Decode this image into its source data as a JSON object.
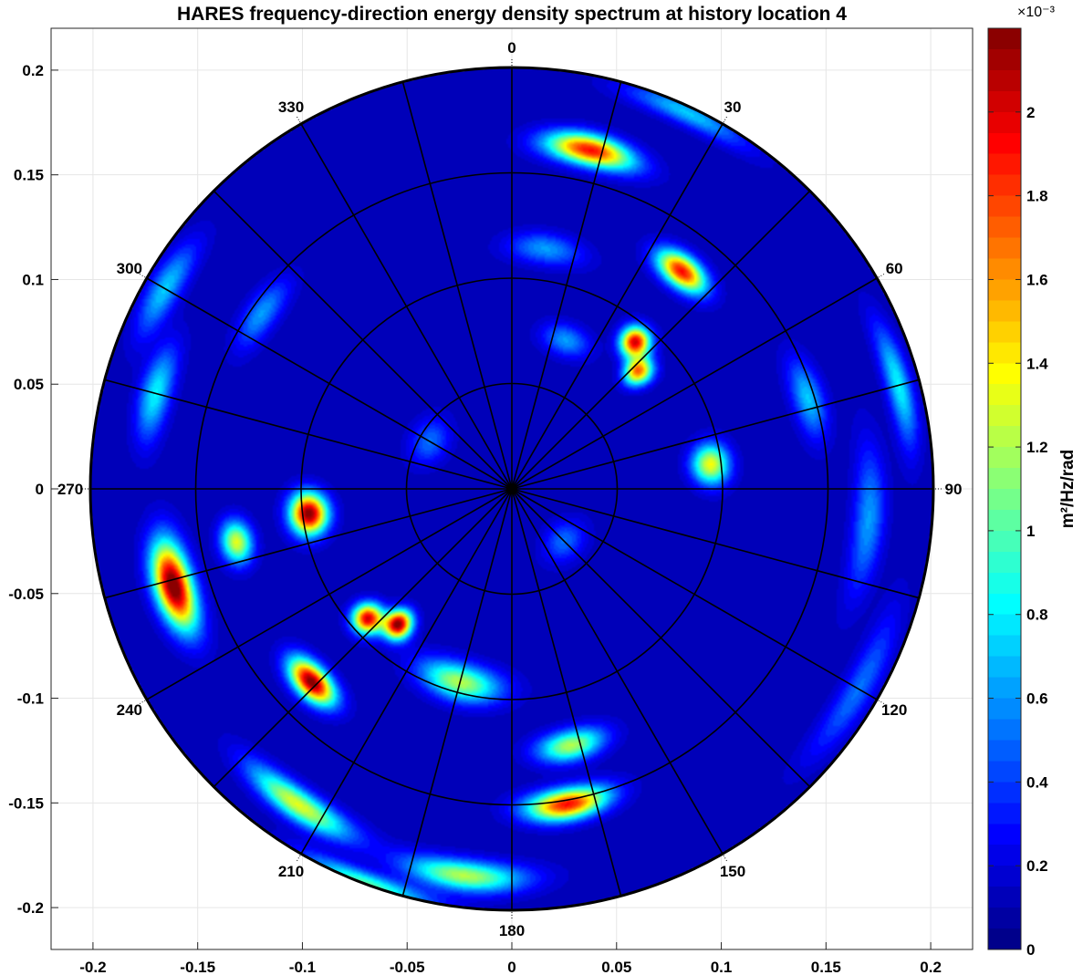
{
  "chart_data": {
    "type": "heatmap",
    "subtype": "polar-spectrum",
    "title": "HARES frequency-direction energy density spectrum at history location 4",
    "x_ticks": [
      -0.2,
      -0.15,
      -0.1,
      -0.05,
      0,
      0.05,
      0.1,
      0.15,
      0.2
    ],
    "y_ticks": [
      0.2,
      0.15,
      0.1,
      0.05,
      0,
      -0.05,
      -0.1,
      -0.15,
      -0.2
    ],
    "xlim": [
      -0.22,
      0.22
    ],
    "ylim": [
      -0.22,
      0.22
    ],
    "grid": true,
    "polar": {
      "max_radius": 0.2,
      "rings": [
        0.05,
        0.1,
        0.15,
        0.2
      ],
      "spoke_step_deg": 15,
      "direction_labels": [
        "0",
        "30",
        "60",
        "90",
        "120",
        "150",
        "180",
        "210",
        "240",
        "270",
        "300",
        "330"
      ],
      "orientation": "clockwise from north"
    },
    "colorbar": {
      "label": "m²/Hz/rad",
      "multiplier": "×10⁻³",
      "range": [
        0,
        0.0022
      ],
      "ticks": [
        "0",
        "0.2",
        "0.4",
        "0.6",
        "0.8",
        "1",
        "1.2",
        "1.4",
        "1.6",
        "1.8",
        "2"
      ],
      "colormap": "jet",
      "position": "right"
    },
    "background_level": 0.00011,
    "peaks": [
      {
        "dir_deg": 83,
        "freq": 0.095,
        "dir_width_deg": 4,
        "freq_width": 0.006,
        "value": 0.00125
      },
      {
        "dir_deg": 73,
        "freq": 0.147,
        "dir_width_deg": 5,
        "freq_width": 0.005,
        "value": 0.0006
      },
      {
        "dir_deg": 40,
        "freq": 0.091,
        "dir_width_deg": 3,
        "freq_width": 0.005,
        "value": 0.0019
      },
      {
        "dir_deg": 47,
        "freq": 0.082,
        "dir_width_deg": 3,
        "freq_width": 0.005,
        "value": 0.0016
      },
      {
        "dir_deg": 38,
        "freq": 0.131,
        "dir_width_deg": 4,
        "freq_width": 0.005,
        "value": 0.0018
      },
      {
        "dir_deg": 13,
        "freq": 0.165,
        "dir_width_deg": 5,
        "freq_width": 0.005,
        "value": 0.0018
      },
      {
        "dir_deg": 20,
        "freq": 0.075,
        "dir_width_deg": 6,
        "freq_width": 0.005,
        "value": 0.0005
      },
      {
        "dir_deg": 8,
        "freq": 0.115,
        "dir_width_deg": 6,
        "freq_width": 0.005,
        "value": 0.0005
      },
      {
        "dir_deg": 25,
        "freq": 0.197,
        "dir_width_deg": 6,
        "freq_width": 0.004,
        "value": 0.0006
      },
      {
        "dir_deg": 263,
        "freq": 0.097,
        "dir_width_deg": 4,
        "freq_width": 0.006,
        "value": 0.0021
      },
      {
        "dir_deg": 254,
        "freq": 0.167,
        "dir_width_deg": 5,
        "freq_width": 0.006,
        "value": 0.0022
      },
      {
        "dir_deg": 259,
        "freq": 0.133,
        "dir_width_deg": 3,
        "freq_width": 0.005,
        "value": 0.0012
      },
      {
        "dir_deg": 220,
        "freq": 0.084,
        "dir_width_deg": 3,
        "freq_width": 0.005,
        "value": 0.0021
      },
      {
        "dir_deg": 228,
        "freq": 0.092,
        "dir_width_deg": 3,
        "freq_width": 0.005,
        "value": 0.0019
      },
      {
        "dir_deg": 226,
        "freq": 0.132,
        "dir_width_deg": 4,
        "freq_width": 0.005,
        "value": 0.0021
      },
      {
        "dir_deg": 214,
        "freq": 0.181,
        "dir_width_deg": 6,
        "freq_width": 0.005,
        "value": 0.0012
      },
      {
        "dir_deg": 195,
        "freq": 0.095,
        "dir_width_deg": 8,
        "freq_width": 0.006,
        "value": 0.0011
      },
      {
        "dir_deg": 170,
        "freq": 0.152,
        "dir_width_deg": 5,
        "freq_width": 0.005,
        "value": 0.0018
      },
      {
        "dir_deg": 187,
        "freq": 0.185,
        "dir_width_deg": 6,
        "freq_width": 0.005,
        "value": 0.0011
      },
      {
        "dir_deg": 200,
        "freq": 0.2,
        "dir_width_deg": 6,
        "freq_width": 0.004,
        "value": 0.0009
      },
      {
        "dir_deg": 167,
        "freq": 0.125,
        "dir_width_deg": 5,
        "freq_width": 0.005,
        "value": 0.0011
      },
      {
        "dir_deg": 285,
        "freq": 0.175,
        "dir_width_deg": 5,
        "freq_width": 0.005,
        "value": 0.0007
      },
      {
        "dir_deg": 305,
        "freq": 0.145,
        "dir_width_deg": 5,
        "freq_width": 0.005,
        "value": 0.0005
      },
      {
        "dir_deg": 300,
        "freq": 0.19,
        "dir_width_deg": 5,
        "freq_width": 0.005,
        "value": 0.0006
      },
      {
        "dir_deg": 120,
        "freq": 0.19,
        "dir_width_deg": 8,
        "freq_width": 0.005,
        "value": 0.0004
      },
      {
        "dir_deg": 95,
        "freq": 0.17,
        "dir_width_deg": 8,
        "freq_width": 0.005,
        "value": 0.0005
      },
      {
        "dir_deg": 75,
        "freq": 0.19,
        "dir_width_deg": 6,
        "freq_width": 0.004,
        "value": 0.0007
      },
      {
        "dir_deg": 300,
        "freq": 0.045,
        "dir_width_deg": 10,
        "freq_width": 0.006,
        "value": 0.0004
      },
      {
        "dir_deg": 135,
        "freq": 0.035,
        "dir_width_deg": 12,
        "freq_width": 0.006,
        "value": 0.0004
      }
    ]
  }
}
